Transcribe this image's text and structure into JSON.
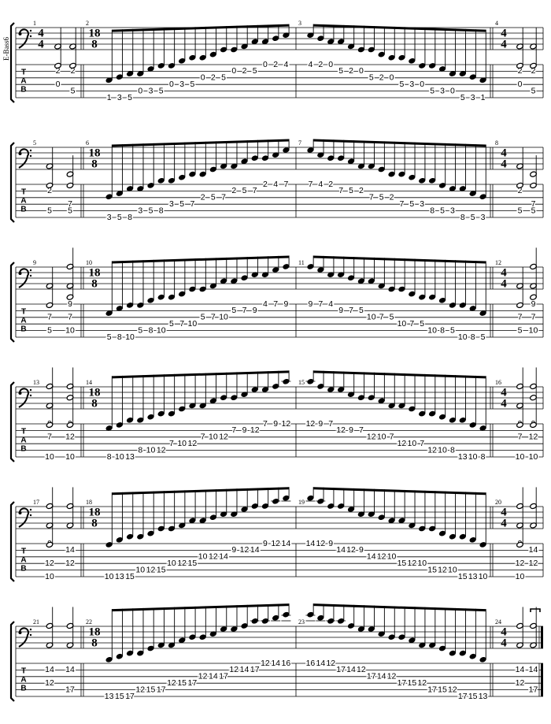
{
  "instrument": "E-Bass6",
  "tab_label": [
    "T",
    "A",
    "B"
  ],
  "systems": [
    {
      "measures": [
        {
          "number": 1,
          "time": [
            4,
            4
          ],
          "chords": [
            [
              [
                2,
                2
              ],
              [
                4,
                0
              ]
            ],
            [
              [
                2,
                2
              ],
              [
                5,
                5
              ]
            ]
          ]
        },
        {
          "number": 2,
          "time": [
            18,
            8
          ],
          "runs": [
            {
              "string": 6,
              "frets": [
                1,
                3,
                5
              ]
            },
            {
              "string": 5,
              "frets": [
                0,
                3,
                5
              ]
            },
            {
              "string": 4,
              "frets": [
                0,
                3,
                5
              ]
            },
            {
              "string": 3,
              "frets": [
                0,
                2,
                5
              ]
            },
            {
              "string": 2,
              "frets": [
                0,
                2,
                5
              ]
            },
            {
              "string": 1,
              "frets": [
                0,
                2,
                4
              ]
            }
          ]
        },
        {
          "number": 3,
          "runs": [
            {
              "string": 1,
              "frets": [
                4,
                2,
                0
              ]
            },
            {
              "string": 2,
              "frets": [
                5,
                2,
                0
              ]
            },
            {
              "string": 3,
              "frets": [
                5,
                2,
                0
              ]
            },
            {
              "string": 4,
              "frets": [
                5,
                3,
                0
              ]
            },
            {
              "string": 5,
              "frets": [
                5,
                3,
                0
              ]
            },
            {
              "string": 6,
              "frets": [
                5,
                3,
                1
              ]
            }
          ]
        },
        {
          "number": 4,
          "time": [
            4,
            4
          ],
          "chords": [
            [
              [
                2,
                2
              ],
              [
                4,
                0
              ]
            ],
            [
              [
                2,
                2
              ],
              [
                5,
                5
              ]
            ]
          ]
        }
      ]
    },
    {
      "measures": [
        {
          "number": 5,
          "chords": [
            [
              [
                2,
                2
              ],
              [
                5,
                5
              ]
            ],
            [
              [
                4,
                7
              ],
              [
                5,
                5
              ]
            ]
          ]
        },
        {
          "number": 6,
          "time": [
            18,
            8
          ],
          "runs": [
            {
              "string": 6,
              "frets": [
                3,
                5,
                8
              ]
            },
            {
              "string": 5,
              "frets": [
                3,
                5,
                8
              ]
            },
            {
              "string": 4,
              "frets": [
                3,
                5,
                7
              ]
            },
            {
              "string": 3,
              "frets": [
                2,
                5,
                7
              ]
            },
            {
              "string": 2,
              "frets": [
                2,
                5,
                7
              ]
            },
            {
              "string": 1,
              "frets": [
                2,
                4,
                7
              ]
            }
          ]
        },
        {
          "number": 7,
          "runs": [
            {
              "string": 1,
              "frets": [
                7,
                4,
                2
              ]
            },
            {
              "string": 2,
              "frets": [
                7,
                5,
                2
              ]
            },
            {
              "string": 3,
              "frets": [
                7,
                5,
                2
              ]
            },
            {
              "string": 4,
              "frets": [
                7,
                5,
                3
              ]
            },
            {
              "string": 5,
              "frets": [
                8,
                5,
                3
              ]
            },
            {
              "string": 6,
              "frets": [
                8,
                5,
                3
              ]
            }
          ]
        },
        {
          "number": 8,
          "time": [
            4,
            4
          ],
          "chords": [
            [
              [
                2,
                2
              ],
              [
                5,
                5
              ]
            ],
            [
              [
                4,
                7
              ],
              [
                5,
                5
              ]
            ]
          ]
        }
      ]
    },
    {
      "measures": [
        {
          "number": 9,
          "chords": [
            [
              [
                3,
                7
              ],
              [
                5,
                5
              ]
            ],
            [
              [
                1,
                9
              ],
              [
                3,
                7
              ],
              [
                5,
                10
              ]
            ]
          ]
        },
        {
          "number": 10,
          "time": [
            18,
            8
          ],
          "runs": [
            {
              "string": 6,
              "frets": [
                5,
                8,
                10
              ]
            },
            {
              "string": 5,
              "frets": [
                5,
                8,
                10
              ]
            },
            {
              "string": 4,
              "frets": [
                5,
                7,
                10
              ]
            },
            {
              "string": 3,
              "frets": [
                5,
                7,
                10
              ]
            },
            {
              "string": 2,
              "frets": [
                5,
                7,
                9
              ]
            },
            {
              "string": 1,
              "frets": [
                4,
                7,
                9
              ]
            }
          ]
        },
        {
          "number": 11,
          "runs": [
            {
              "string": 1,
              "frets": [
                9,
                7,
                4
              ]
            },
            {
              "string": 2,
              "frets": [
                9,
                7,
                5
              ]
            },
            {
              "string": 3,
              "frets": [
                10,
                7,
                5
              ]
            },
            {
              "string": 4,
              "frets": [
                10,
                7,
                5
              ]
            },
            {
              "string": 5,
              "frets": [
                10,
                8,
                5
              ]
            },
            {
              "string": 6,
              "frets": [
                10,
                8,
                5
              ]
            }
          ]
        },
        {
          "number": 12,
          "time": [
            4,
            4
          ],
          "chords": [
            [
              [
                3,
                7
              ],
              [
                5,
                5
              ]
            ],
            [
              [
                1,
                9
              ],
              [
                3,
                7
              ],
              [
                5,
                10
              ]
            ]
          ]
        }
      ]
    },
    {
      "measures": [
        {
          "number": 13,
          "chords": [
            [
              [
                1,
                9
              ],
              [
                3,
                7
              ],
              [
                6,
                10
              ]
            ],
            [
              [
                1,
                9
              ],
              [
                3,
                12
              ],
              [
                6,
                10
              ]
            ]
          ]
        },
        {
          "number": 14,
          "time": [
            18,
            8
          ],
          "runs": [
            {
              "string": 6,
              "frets": [
                8,
                10,
                13
              ]
            },
            {
              "string": 5,
              "frets": [
                8,
                10,
                12
              ]
            },
            {
              "string": 4,
              "frets": [
                7,
                10,
                12
              ]
            },
            {
              "string": 3,
              "frets": [
                7,
                10,
                12
              ]
            },
            {
              "string": 2,
              "frets": [
                7,
                9,
                12
              ]
            },
            {
              "string": 1,
              "frets": [
                7,
                9,
                12
              ]
            }
          ]
        },
        {
          "number": 15,
          "runs": [
            {
              "string": 1,
              "frets": [
                12,
                9,
                7
              ]
            },
            {
              "string": 2,
              "frets": [
                12,
                9,
                7
              ]
            },
            {
              "string": 3,
              "frets": [
                12,
                10,
                7
              ]
            },
            {
              "string": 4,
              "frets": [
                12,
                10,
                7
              ]
            },
            {
              "string": 5,
              "frets": [
                12,
                10,
                8
              ]
            },
            {
              "string": 6,
              "frets": [
                13,
                10,
                8
              ]
            }
          ]
        },
        {
          "number": 16,
          "time": [
            4,
            4
          ],
          "chords": [
            [
              [
                1,
                9
              ],
              [
                3,
                7
              ],
              [
                6,
                10
              ]
            ],
            [
              [
                1,
                9
              ],
              [
                3,
                12
              ],
              [
                6,
                10
              ]
            ]
          ]
        }
      ]
    },
    {
      "measures": [
        {
          "number": 17,
          "chords": [
            [
              [
                1,
                9
              ],
              [
                4,
                12
              ],
              [
                6,
                10
              ]
            ],
            [
              [
                2,
                14
              ],
              [
                4,
                12
              ]
            ]
          ]
        },
        {
          "number": 18,
          "time": [
            18,
            8
          ],
          "runs": [
            {
              "string": 6,
              "frets": [
                10,
                13,
                15
              ]
            },
            {
              "string": 5,
              "frets": [
                10,
                12,
                15
              ]
            },
            {
              "string": 4,
              "frets": [
                10,
                12,
                15
              ]
            },
            {
              "string": 3,
              "frets": [
                10,
                12,
                14
              ]
            },
            {
              "string": 2,
              "frets": [
                9,
                12,
                14
              ]
            },
            {
              "string": 1,
              "frets": [
                9,
                12,
                14
              ]
            }
          ]
        },
        {
          "number": 19,
          "runs": [
            {
              "string": 1,
              "frets": [
                14,
                12,
                9
              ]
            },
            {
              "string": 2,
              "frets": [
                14,
                12,
                9
              ]
            },
            {
              "string": 3,
              "frets": [
                14,
                12,
                10
              ]
            },
            {
              "string": 4,
              "frets": [
                15,
                12,
                10
              ]
            },
            {
              "string": 5,
              "frets": [
                15,
                12,
                10
              ]
            },
            {
              "string": 6,
              "frets": [
                15,
                13,
                10
              ]
            }
          ]
        },
        {
          "number": 20,
          "time": [
            4,
            4
          ],
          "chords": [
            [
              [
                1,
                9
              ],
              [
                4,
                12
              ],
              [
                6,
                10
              ]
            ],
            [
              [
                2,
                14
              ],
              [
                4,
                12
              ]
            ]
          ]
        }
      ]
    },
    {
      "measures": [
        {
          "number": 21,
          "chords": [
            [
              [
                2,
                14
              ],
              [
                4,
                12
              ]
            ],
            [
              [
                2,
                14
              ],
              [
                5,
                17
              ]
            ]
          ]
        },
        {
          "number": 22,
          "time": [
            18,
            8
          ],
          "runs": [
            {
              "string": 6,
              "frets": [
                13,
                15,
                17
              ]
            },
            {
              "string": 5,
              "frets": [
                12,
                15,
                17
              ]
            },
            {
              "string": 4,
              "frets": [
                12,
                15,
                17
              ]
            },
            {
              "string": 3,
              "frets": [
                12,
                14,
                17
              ]
            },
            {
              "string": 2,
              "frets": [
                12,
                14,
                17
              ]
            },
            {
              "string": 1,
              "frets": [
                12,
                14,
                16
              ]
            }
          ]
        },
        {
          "number": 23,
          "runs": [
            {
              "string": 1,
              "frets": [
                16,
                14,
                12
              ]
            },
            {
              "string": 2,
              "frets": [
                17,
                14,
                12
              ]
            },
            {
              "string": 3,
              "frets": [
                17,
                14,
                12
              ]
            },
            {
              "string": 4,
              "frets": [
                17,
                15,
                12
              ]
            },
            {
              "string": 5,
              "frets": [
                17,
                15,
                12
              ]
            },
            {
              "string": 6,
              "frets": [
                17,
                15,
                13
              ]
            }
          ]
        },
        {
          "number": 24,
          "time": [
            4,
            4
          ],
          "chords": [
            [
              [
                2,
                14
              ],
              [
                4,
                12
              ]
            ],
            [
              [
                2,
                14
              ],
              [
                5,
                17
              ]
            ]
          ]
        }
      ]
    }
  ]
}
